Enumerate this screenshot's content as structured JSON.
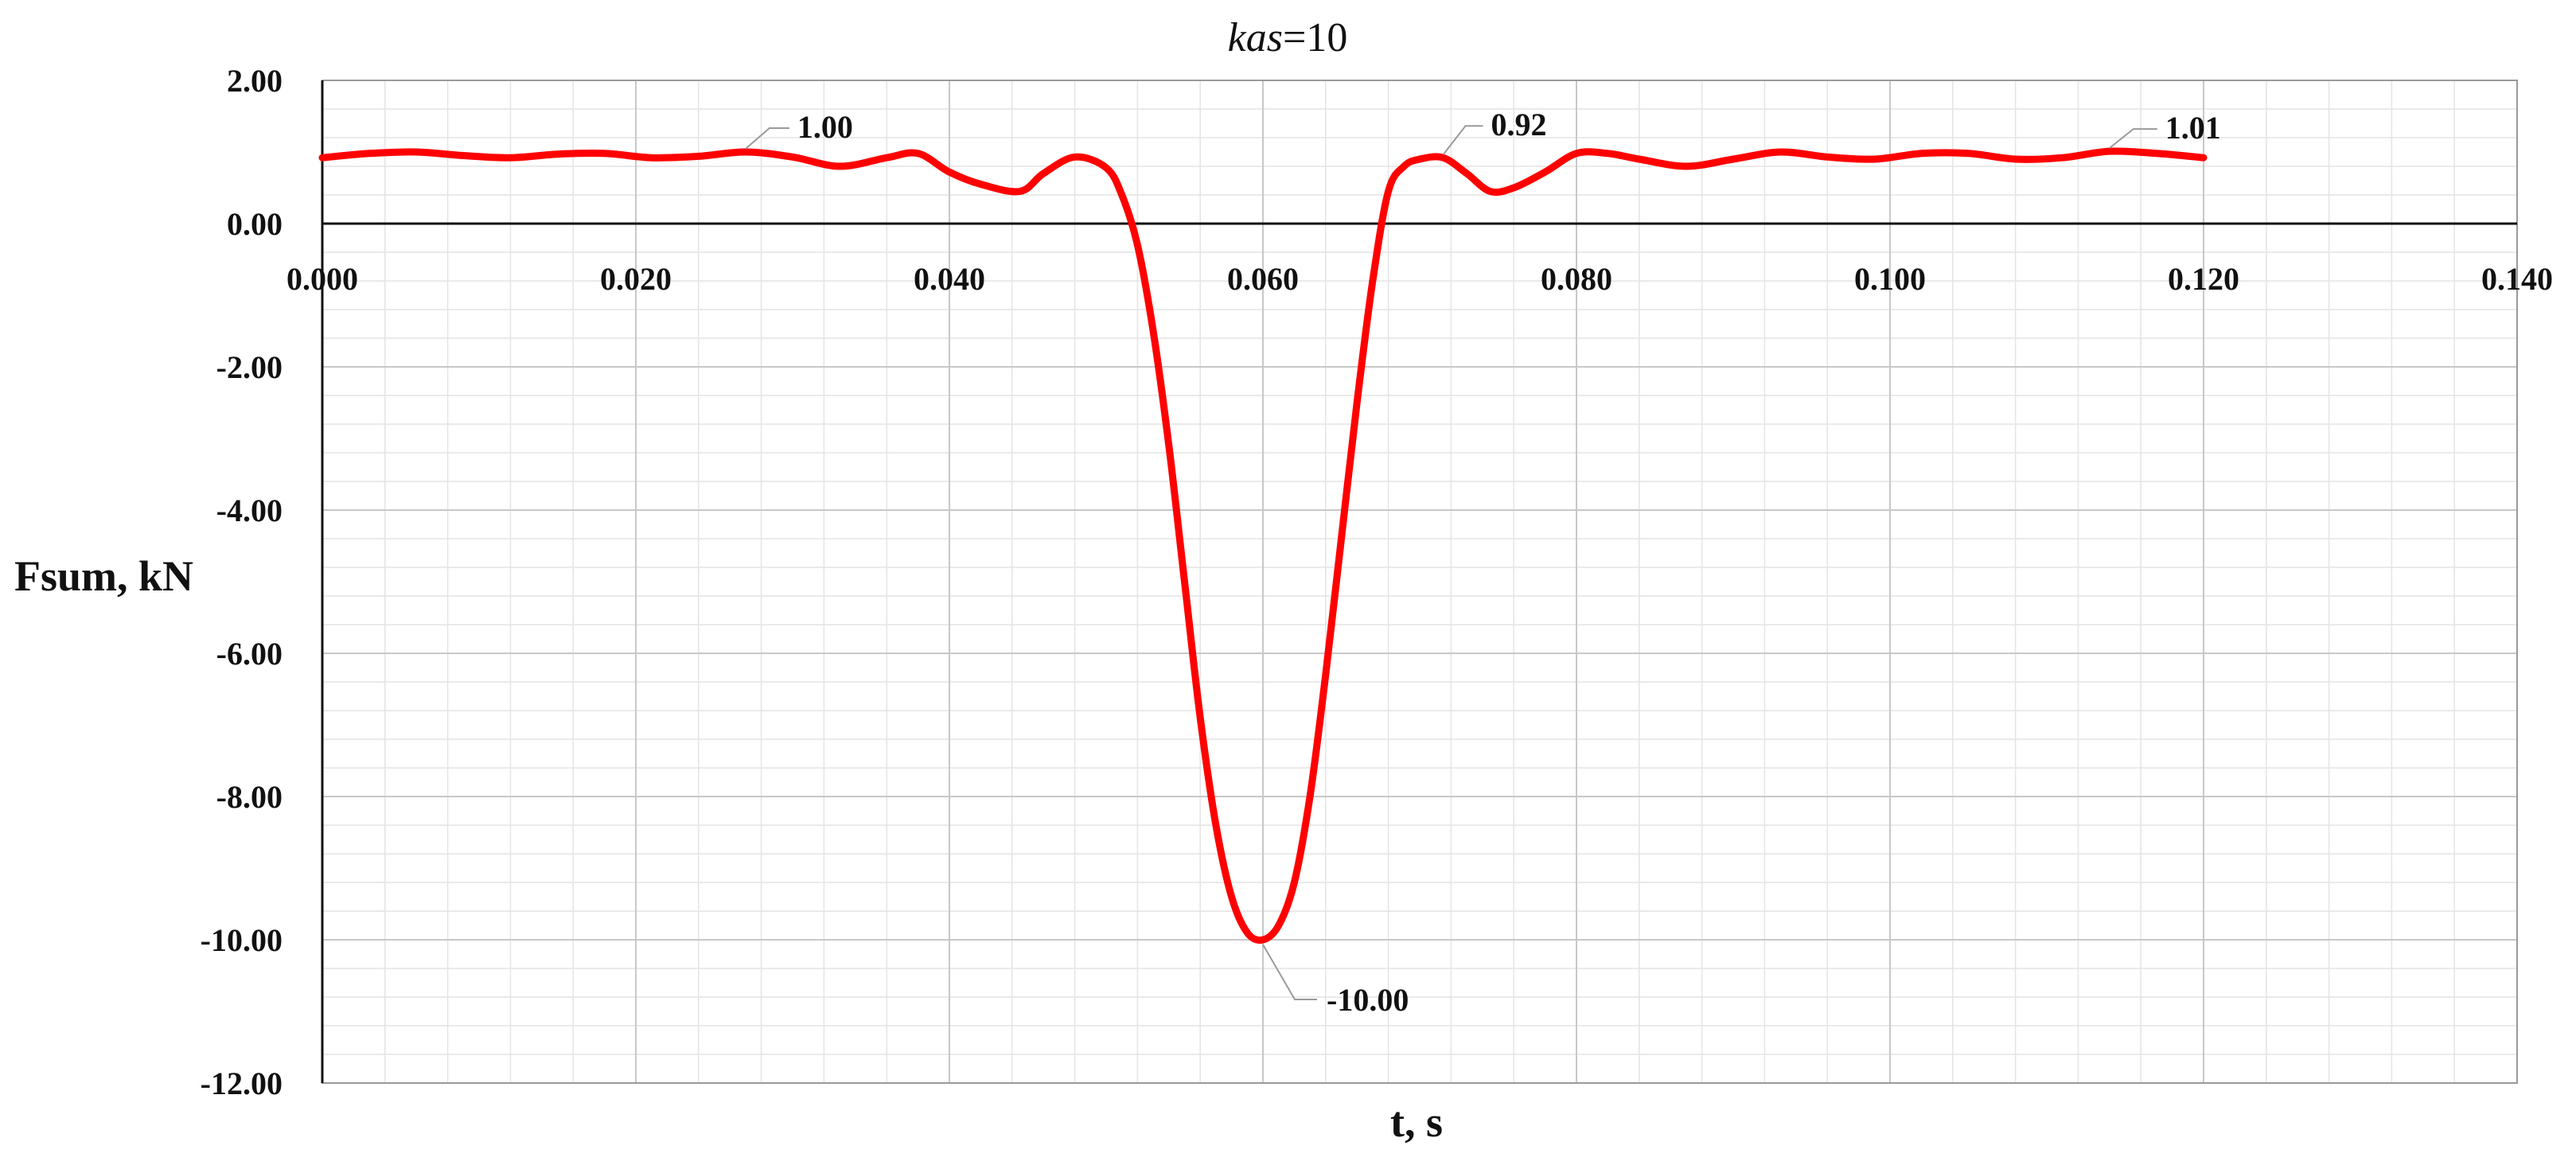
{
  "chart_data": {
    "type": "line",
    "title": {
      "italic": "kas",
      "rest": "=10"
    },
    "xlabel": "t, s",
    "ylabel": "Fsum, kN",
    "xlim": [
      0,
      0.14
    ],
    "ylim": [
      -12,
      2
    ],
    "x_ticks": [
      "0.000",
      "0.020",
      "0.040",
      "0.060",
      "0.080",
      "0.100",
      "0.120",
      "0.140"
    ],
    "y_ticks": [
      "2.00",
      "0.00",
      "-2.00",
      "-4.00",
      "-6.00",
      "-8.00",
      "-10.00",
      "-12.00"
    ],
    "grid": true,
    "legend": "none",
    "line_color": "#ff0000",
    "series": [
      {
        "x": [
          0.0,
          0.003,
          0.006,
          0.009,
          0.012,
          0.015,
          0.018,
          0.021,
          0.024,
          0.027,
          0.03,
          0.033,
          0.036,
          0.038,
          0.04,
          0.042,
          0.0445,
          0.046,
          0.048,
          0.05,
          0.051,
          0.052,
          0.053,
          0.054,
          0.055,
          0.056,
          0.057,
          0.058,
          0.059,
          0.06,
          0.061,
          0.062,
          0.063,
          0.064,
          0.065,
          0.066,
          0.067,
          0.068,
          0.069,
          0.07,
          0.0715,
          0.073,
          0.0745,
          0.076,
          0.078,
          0.08,
          0.082,
          0.084,
          0.087,
          0.09,
          0.093,
          0.096,
          0.099,
          0.102,
          0.105,
          0.108,
          0.111,
          0.114,
          0.117,
          0.12
        ],
        "y": [
          0.92,
          0.98,
          1.0,
          0.95,
          0.92,
          0.97,
          0.98,
          0.92,
          0.94,
          1.0,
          0.93,
          0.8,
          0.92,
          0.98,
          0.72,
          0.55,
          0.45,
          0.7,
          0.93,
          0.78,
          0.4,
          -0.3,
          -1.5,
          -3.1,
          -5.0,
          -6.9,
          -8.4,
          -9.4,
          -9.9,
          -10.0,
          -9.8,
          -9.2,
          -8.0,
          -6.3,
          -4.4,
          -2.5,
          -0.8,
          0.45,
          0.8,
          0.9,
          0.92,
          0.7,
          0.45,
          0.5,
          0.72,
          0.98,
          0.98,
          0.9,
          0.8,
          0.9,
          1.0,
          0.93,
          0.9,
          0.98,
          0.98,
          0.9,
          0.92,
          1.01,
          0.98,
          0.92
        ]
      }
    ],
    "annotations": [
      {
        "text": "1.00",
        "x": 0.027,
        "y": 1.0
      },
      {
        "text": "0.92",
        "x": 0.0715,
        "y": 0.92
      },
      {
        "text": "1.01",
        "x": 0.114,
        "y": 1.01
      },
      {
        "text": "-10.00",
        "x": 0.06,
        "y": -10.0
      }
    ]
  }
}
